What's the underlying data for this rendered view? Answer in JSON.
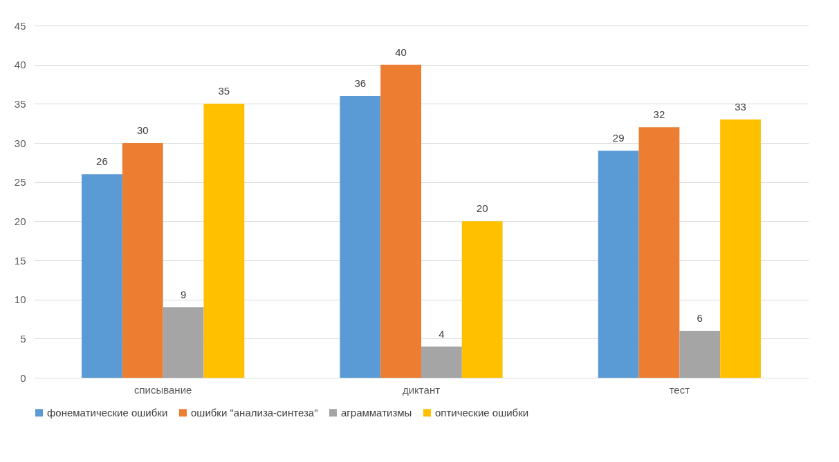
{
  "chart_data": {
    "type": "bar",
    "categories": [
      "списывание",
      "диктант",
      "тест"
    ],
    "series": [
      {
        "name": "фонематические ошибки",
        "color": "#5b9bd5",
        "values": [
          26,
          36,
          29
        ]
      },
      {
        "name": "ошибки \"анализа-синтеза\"",
        "color": "#ed7d31",
        "values": [
          30,
          40,
          32
        ]
      },
      {
        "name": "аграмматизмы",
        "color": "#a5a5a5",
        "values": [
          9,
          4,
          6
        ]
      },
      {
        "name": "оптические ошибки",
        "color": "#ffc000",
        "values": [
          35,
          20,
          33
        ]
      }
    ],
    "ylim": [
      0,
      45
    ],
    "yticks": [
      0,
      5,
      10,
      15,
      20,
      25,
      30,
      35,
      40,
      45
    ],
    "grid": "y",
    "legend": "bottom",
    "data_labels": true
  }
}
